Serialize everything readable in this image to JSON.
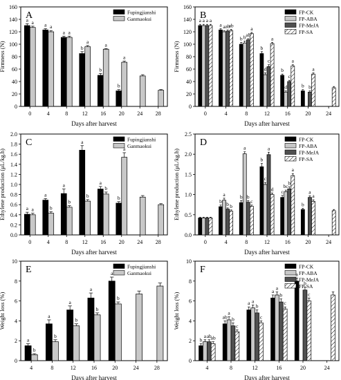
{
  "colors": {
    "black": "#000000",
    "light_gray": "#c8c8c8",
    "medium_gray": "#a0a0a0",
    "dark_gray": "#505050",
    "hatch": "#ffffff"
  },
  "chart_data": [
    {
      "panel": "A",
      "type": "bar",
      "xlabel": "Days after harvest",
      "ylabel": "Firmness (N)",
      "ylim": [
        0,
        160
      ],
      "yticks": [
        0,
        20,
        40,
        60,
        80,
        100,
        120,
        140,
        160
      ],
      "categories": [
        "0",
        "4",
        "8",
        "12",
        "16",
        "20",
        "24",
        "28"
      ],
      "legend": "top-right",
      "series": [
        {
          "name": "Fupingjianshi",
          "style": "black",
          "values": [
            130,
            123,
            111,
            85,
            50,
            25,
            null,
            null
          ],
          "errors": [
            3,
            2,
            2,
            3,
            3,
            2,
            null,
            null
          ],
          "letters": [
            "a",
            "a",
            "a",
            "b",
            "b",
            "b",
            "",
            ""
          ]
        },
        {
          "name": "Ganmaokui",
          "style": "light_gray",
          "values": [
            127,
            120,
            111,
            96,
            92,
            71,
            49,
            26
          ],
          "errors": [
            2,
            2,
            2,
            2,
            1,
            2,
            2,
            1
          ],
          "letters": [
            "a",
            "a",
            "a",
            "a",
            "a",
            "a",
            "",
            ""
          ]
        }
      ]
    },
    {
      "panel": "B",
      "type": "bar",
      "xlabel": "Days after harvest",
      "ylabel": "Firmness (N)",
      "ylim": [
        0,
        160
      ],
      "yticks": [
        0,
        20,
        40,
        60,
        80,
        100,
        120,
        140,
        160
      ],
      "categories": [
        "0",
        "4",
        "8",
        "12",
        "16",
        "20",
        "24"
      ],
      "legend": "top-right",
      "series": [
        {
          "name": "FP-CK",
          "style": "black",
          "values": [
            130,
            123,
            100,
            85,
            50,
            25,
            null
          ],
          "errors": [
            2,
            2,
            3,
            3,
            2,
            2,
            null
          ],
          "letters": [
            "a",
            "a",
            "b",
            "b",
            "b",
            "b",
            ""
          ]
        },
        {
          "name": "FP-ABA",
          "style": "light_gray",
          "values": [
            130,
            120,
            102,
            51,
            23,
            null,
            null
          ],
          "errors": [
            2,
            2,
            3,
            3,
            2,
            null,
            null
          ],
          "letters": [
            "a",
            "a",
            "b",
            "d",
            "d",
            "",
            ""
          ]
        },
        {
          "name": "FP-MeJA",
          "style": "dark_gray",
          "values": [
            130,
            121,
            107,
            64,
            40,
            23,
            null
          ],
          "errors": [
            2,
            2,
            2,
            3,
            2,
            2,
            null
          ],
          "letters": [
            "a",
            "ab",
            "ab",
            "c",
            "c",
            "b",
            ""
          ]
        },
        {
          "name": "FP-SA",
          "style": "hatch",
          "values": [
            130,
            122,
            117,
            101,
            65,
            52,
            30
          ],
          "errors": [
            2,
            2,
            2,
            2,
            2,
            2,
            2
          ],
          "letters": [
            "a",
            "ab",
            "a",
            "a",
            "a",
            "a",
            ""
          ]
        }
      ]
    },
    {
      "panel": "C",
      "type": "bar",
      "xlabel": "Days after harvest",
      "ylabel": "Ethylene production (μL/kg.h)",
      "ylim": [
        0,
        2.0
      ],
      "yticks": [
        0.0,
        0.2,
        0.4,
        0.6,
        0.8,
        1.0,
        1.2,
        1.4,
        1.6,
        1.8,
        2.0
      ],
      "categories": [
        "0",
        "4",
        "8",
        "12",
        "16",
        "20",
        "24",
        "28"
      ],
      "legend": "top-right",
      "series": [
        {
          "name": "Fupingjianshi",
          "style": "black",
          "values": [
            0.41,
            0.69,
            0.82,
            1.68,
            0.91,
            0.63,
            null,
            null
          ],
          "errors": [
            0.04,
            0.03,
            0.09,
            0.09,
            0.05,
            0.03,
            null,
            null
          ],
          "letters": [
            "a",
            "a",
            "a",
            "a",
            "a",
            "b",
            "",
            ""
          ]
        },
        {
          "name": "Ganmaokui",
          "style": "light_gray",
          "values": [
            0.4,
            0.43,
            0.55,
            0.67,
            0.81,
            1.54,
            0.75,
            0.6
          ],
          "errors": [
            0.03,
            0.03,
            0.03,
            0.03,
            0.04,
            0.09,
            0.03,
            0.02
          ],
          "letters": [
            "a",
            "b",
            "b",
            "b",
            "b",
            "a",
            "",
            ""
          ]
        }
      ]
    },
    {
      "panel": "D",
      "type": "bar",
      "xlabel": "Days after harvest",
      "ylabel": "Ethylene production (μL/kg.h)",
      "ylim": [
        0,
        2.5
      ],
      "yticks": [
        0.0,
        0.5,
        1.0,
        1.5,
        2.0,
        2.5
      ],
      "categories": [
        "0",
        "4",
        "8",
        "12",
        "16",
        "20",
        "24"
      ],
      "legend": "top-right",
      "series": [
        {
          "name": "FP-CK",
          "style": "black",
          "values": [
            0.42,
            0.7,
            0.8,
            1.69,
            0.93,
            0.63,
            null
          ],
          "errors": [
            0.02,
            0.04,
            0.05,
            0.08,
            0.05,
            0.03,
            null
          ],
          "letters": [
            "",
            "b",
            "b",
            "b",
            "c",
            "b",
            ""
          ]
        },
        {
          "name": "FP-ABA",
          "style": "light_gray",
          "values": [
            0.42,
            0.86,
            2.01,
            1.25,
            1.07,
            null,
            null
          ],
          "errors": [
            0.02,
            0.05,
            0.05,
            0.05,
            0.04,
            null,
            null
          ],
          "letters": [
            "",
            "a",
            "a",
            "c",
            "bc",
            "",
            ""
          ]
        },
        {
          "name": "FP-MeJA",
          "style": "dark_gray",
          "values": [
            0.42,
            0.64,
            0.81,
            1.99,
            1.14,
            0.93,
            null
          ],
          "errors": [
            0.02,
            0.03,
            0.04,
            0.06,
            0.05,
            0.04,
            null
          ],
          "letters": [
            "",
            "b",
            "b",
            "a",
            "b",
            "a",
            ""
          ]
        },
        {
          "name": "FP-SA",
          "style": "hatch",
          "values": [
            0.42,
            0.59,
            0.71,
            1.0,
            1.47,
            0.83,
            0.6
          ],
          "errors": [
            0.02,
            0.03,
            0.03,
            0.04,
            0.05,
            0.04,
            0.03
          ],
          "letters": [
            "",
            "b",
            "c",
            "d",
            "a",
            "a",
            ""
          ]
        }
      ]
    },
    {
      "panel": "E",
      "type": "bar",
      "xlabel": "Days after harvest",
      "ylabel": "Weight loss (%)",
      "ylim": [
        0,
        10
      ],
      "yticks": [
        0,
        2,
        4,
        6,
        8,
        10
      ],
      "categories": [
        "4",
        "8",
        "12",
        "16",
        "20",
        "24",
        "28"
      ],
      "legend": "top-right",
      "series": [
        {
          "name": "Fupingjianshi",
          "style": "black",
          "values": [
            1.5,
            3.7,
            5.1,
            6.3,
            8.0,
            null,
            null
          ],
          "errors": [
            0.2,
            0.4,
            0.4,
            0.5,
            0.4,
            null,
            null
          ],
          "letters": [
            "a",
            "a",
            "a",
            "a",
            "a",
            "",
            ""
          ]
        },
        {
          "name": "Ganmaokui",
          "style": "light_gray",
          "values": [
            0.6,
            1.9,
            3.5,
            4.6,
            5.7,
            6.7,
            7.5
          ],
          "errors": [
            0.1,
            0.2,
            0.2,
            0.2,
            0.2,
            0.3,
            0.3
          ],
          "letters": [
            "b",
            "b",
            "b",
            "b",
            "b",
            "",
            ""
          ]
        }
      ]
    },
    {
      "panel": "F",
      "type": "bar",
      "xlabel": "Days after harvest",
      "ylabel": "Weight loss (%)",
      "ylim": [
        0,
        10
      ],
      "yticks": [
        0,
        2,
        4,
        6,
        8,
        10
      ],
      "categories": [
        "4",
        "8",
        "12",
        "16",
        "20",
        "24"
      ],
      "legend": "top-right",
      "series": [
        {
          "name": "FP-CK",
          "style": "black",
          "values": [
            1.5,
            3.7,
            5.1,
            6.3,
            8.0,
            null
          ],
          "errors": [
            0.2,
            0.3,
            0.3,
            0.3,
            0.3,
            null
          ],
          "letters": [
            "b",
            "ab",
            "a",
            "a",
            "a",
            ""
          ]
        },
        {
          "name": "FP-ABA",
          "style": "light_gray",
          "values": [
            1.9,
            4.1,
            5.3,
            6.6,
            null,
            null
          ],
          "errors": [
            0.2,
            0.3,
            0.3,
            0.3,
            null,
            null
          ],
          "letters": [
            "a",
            "a",
            "a",
            "a",
            "",
            ""
          ]
        },
        {
          "name": "FP-MeJA",
          "style": "dark_gray",
          "values": [
            1.9,
            3.5,
            4.8,
            5.9,
            7.1,
            null
          ],
          "errors": [
            0.2,
            0.3,
            0.3,
            0.3,
            0.3,
            null
          ],
          "letters": [
            "ab",
            "b",
            "b",
            "b",
            "b",
            ""
          ]
        },
        {
          "name": "FP-SA",
          "style": "hatch",
          "values": [
            1.7,
            2.9,
            3.8,
            5.2,
            6.0,
            6.6
          ],
          "errors": [
            0.2,
            0.2,
            0.2,
            0.2,
            0.3,
            0.3
          ],
          "letters": [
            "ab",
            "c",
            "c",
            "c",
            "c",
            ""
          ]
        }
      ]
    }
  ]
}
